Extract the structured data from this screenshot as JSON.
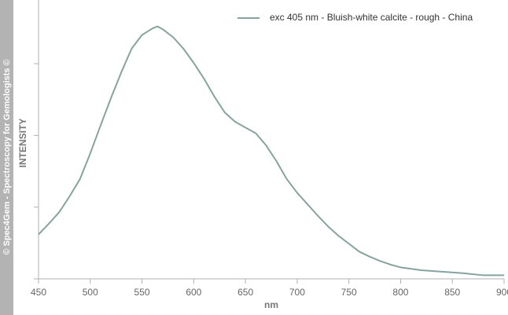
{
  "watermark": "© Spec4Gem - Spectroscopy for Gemologists ©",
  "chart_data": {
    "type": "line",
    "x_label": "nm",
    "y_label": "INTENSITY",
    "x": [
      450,
      460,
      470,
      480,
      490,
      500,
      510,
      520,
      530,
      540,
      550,
      560,
      565,
      570,
      580,
      590,
      600,
      610,
      620,
      630,
      640,
      650,
      660,
      670,
      680,
      690,
      700,
      710,
      720,
      730,
      740,
      750,
      760,
      770,
      780,
      790,
      800,
      820,
      840,
      860,
      880,
      900
    ],
    "series": [
      {
        "name": "exc 405 nm - Bluish-white calcite - rough - China",
        "color": "#86a39e",
        "values": [
          0.62,
          0.77,
          0.93,
          1.15,
          1.39,
          1.75,
          2.14,
          2.52,
          2.88,
          3.21,
          3.4,
          3.49,
          3.52,
          3.48,
          3.37,
          3.21,
          3.01,
          2.79,
          2.54,
          2.32,
          2.19,
          2.11,
          2.03,
          1.86,
          1.64,
          1.39,
          1.2,
          1.04,
          0.88,
          0.73,
          0.6,
          0.49,
          0.38,
          0.31,
          0.25,
          0.2,
          0.16,
          0.12,
          0.1,
          0.08,
          0.05,
          0.05
        ]
      }
    ],
    "xlim": [
      450,
      900
    ],
    "xticks": [
      450,
      500,
      550,
      600,
      650,
      700,
      750,
      800,
      850,
      900
    ],
    "ylim": [
      0,
      3.8
    ],
    "yticks": [
      0,
      1,
      2,
      3
    ],
    "legend": "top-right"
  }
}
